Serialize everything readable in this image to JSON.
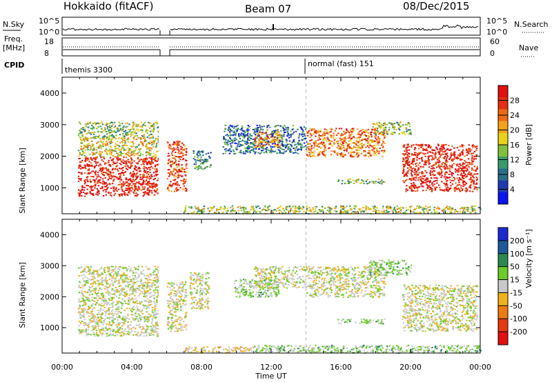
{
  "header": {
    "radar": "Hokkaido (fitACF)",
    "beam": "Beam 07",
    "date": "08/Dec/2015"
  },
  "strips": {
    "nsky_label": "N.Sky",
    "nsky_ticks": [
      "10^5",
      "10^0"
    ],
    "nsearch_label": "N.Search",
    "nsearch_ticks": [
      "10^5",
      "10^0"
    ],
    "freq_label_1": "Freq.",
    "freq_label_2": "[MHz]",
    "freq_ticks": [
      "18",
      "8"
    ],
    "nave_label": "Nave",
    "nave_ticks": [
      "60",
      "0"
    ],
    "cpid_label": "CPID",
    "cpid_segments": [
      {
        "name": "themis 3300",
        "start_hour": 0
      },
      {
        "name": "normal (fast) 151",
        "start_hour": 14
      }
    ]
  },
  "chart_data": [
    {
      "type": "heatmap",
      "panel": "power",
      "ylabel": "Slant Range [km]",
      "ylim": [
        180,
        4500
      ],
      "yticks": [
        1000,
        2000,
        3000,
        4000
      ],
      "xlim": [
        0,
        24
      ],
      "colorbar": {
        "label": "Power [dB]",
        "range": [
          0,
          32
        ],
        "ticks": [
          4,
          8,
          12,
          16,
          20,
          24,
          28
        ],
        "colors": [
          "#0a14f0",
          "#1e3ab0",
          "#2a6f8a",
          "#3a9a6a",
          "#7fbf3c",
          "#e8d21a",
          "#f4a21a",
          "#ee6a12",
          "#e33010",
          "#e01010"
        ]
      },
      "regions": [
        {
          "x": [
            0.9,
            5.5
          ],
          "y": [
            750,
            2000
          ],
          "value": 30
        },
        {
          "x": [
            0.9,
            5.5
          ],
          "y": [
            2000,
            2600
          ],
          "value": 18
        },
        {
          "x": [
            0.9,
            5.5
          ],
          "y": [
            2600,
            3100
          ],
          "value": 14
        },
        {
          "x": [
            6.0,
            7.1
          ],
          "y": [
            900,
            2500
          ],
          "value": 26
        },
        {
          "x": [
            7.5,
            8.5
          ],
          "y": [
            1600,
            2200
          ],
          "value": 10
        },
        {
          "x": [
            9.2,
            14.0
          ],
          "y": [
            2100,
            3000
          ],
          "value": 8
        },
        {
          "x": [
            11.0,
            12.5
          ],
          "y": [
            2300,
            2800
          ],
          "value": 24
        },
        {
          "x": [
            14.0,
            18.5
          ],
          "y": [
            2000,
            2900
          ],
          "value": 24
        },
        {
          "x": [
            15.8,
            18.5
          ],
          "y": [
            1150,
            1300
          ],
          "value": 14
        },
        {
          "x": [
            17.8,
            20.0
          ],
          "y": [
            2700,
            3100
          ],
          "value": 14
        },
        {
          "x": [
            19.5,
            23.8
          ],
          "y": [
            900,
            2400
          ],
          "value": 30
        },
        {
          "x": [
            7.0,
            24.0
          ],
          "y": [
            200,
            450
          ],
          "value": 16
        }
      ]
    },
    {
      "type": "heatmap",
      "panel": "velocity",
      "ylabel": "Slant Range [km]",
      "ylim": [
        180,
        4500
      ],
      "yticks": [
        1000,
        2000,
        3000,
        4000
      ],
      "xlim": [
        0,
        24
      ],
      "xlabel": "Time UT",
      "xticks": [
        "00:00",
        "04:00",
        "08:00",
        "12:00",
        "16:00",
        "20:00",
        "00:00"
      ],
      "colorbar": {
        "label": "Velocity [m s⁻¹]",
        "ticks": [
          "200",
          "100",
          "50",
          "15",
          "-15",
          "-50",
          "-100",
          "-200"
        ],
        "colors": [
          "#1a2bd0",
          "#1e5a9a",
          "#2a8a50",
          "#6ccc2a",
          "#c8c8c8",
          "#f0b21a",
          "#ee7a12",
          "#e43a10",
          "#e01010"
        ]
      },
      "regions": [
        {
          "x": [
            0.9,
            5.5
          ],
          "y": [
            750,
            2000
          ],
          "value": 0
        },
        {
          "x": [
            0.9,
            5.5
          ],
          "y": [
            2000,
            3000
          ],
          "value": 0
        },
        {
          "x": [
            6.0,
            7.1
          ],
          "y": [
            900,
            2500
          ],
          "value": 0
        },
        {
          "x": [
            7.3,
            8.4
          ],
          "y": [
            1600,
            2800
          ],
          "value": 0
        },
        {
          "x": [
            9.8,
            12.4
          ],
          "y": [
            2000,
            2600
          ],
          "value": 40
        },
        {
          "x": [
            11.0,
            14.0
          ],
          "y": [
            2300,
            3000
          ],
          "value": 0
        },
        {
          "x": [
            14.0,
            18.5
          ],
          "y": [
            2000,
            3000
          ],
          "value": 0
        },
        {
          "x": [
            15.8,
            18.5
          ],
          "y": [
            1150,
            1300
          ],
          "value": 40
        },
        {
          "x": [
            17.5,
            20.0
          ],
          "y": [
            2700,
            3200
          ],
          "value": 40
        },
        {
          "x": [
            19.5,
            23.8
          ],
          "y": [
            900,
            2400
          ],
          "value": 0
        },
        {
          "x": [
            7.0,
            11.0
          ],
          "y": [
            200,
            400
          ],
          "value": -40
        },
        {
          "x": [
            11.0,
            24.0
          ],
          "y": [
            200,
            450
          ],
          "value": 40
        }
      ]
    }
  ]
}
